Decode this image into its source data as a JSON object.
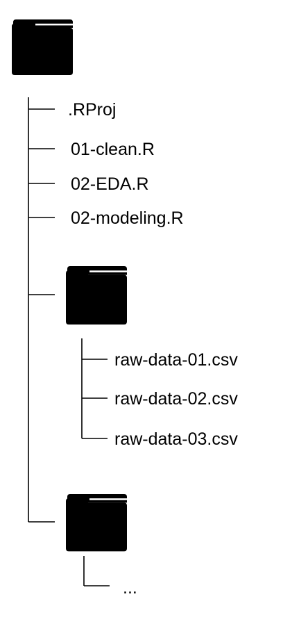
{
  "colors": {
    "line": "#000000",
    "folder": "#000000",
    "background": "#ffffff"
  },
  "tree": {
    "root": {
      "icon": "folder-icon",
      "files": [
        ".RProj",
        "01-clean.R",
        "02-EDA.R",
        "02-modeling.R"
      ],
      "subfolder_data": {
        "icon": "folder-icon",
        "files": [
          "raw-data-01.csv",
          "raw-data-02.csv",
          "raw-data-03.csv"
        ]
      },
      "subfolder_other": {
        "icon": "folder-icon",
        "files": [
          "..."
        ]
      }
    }
  }
}
